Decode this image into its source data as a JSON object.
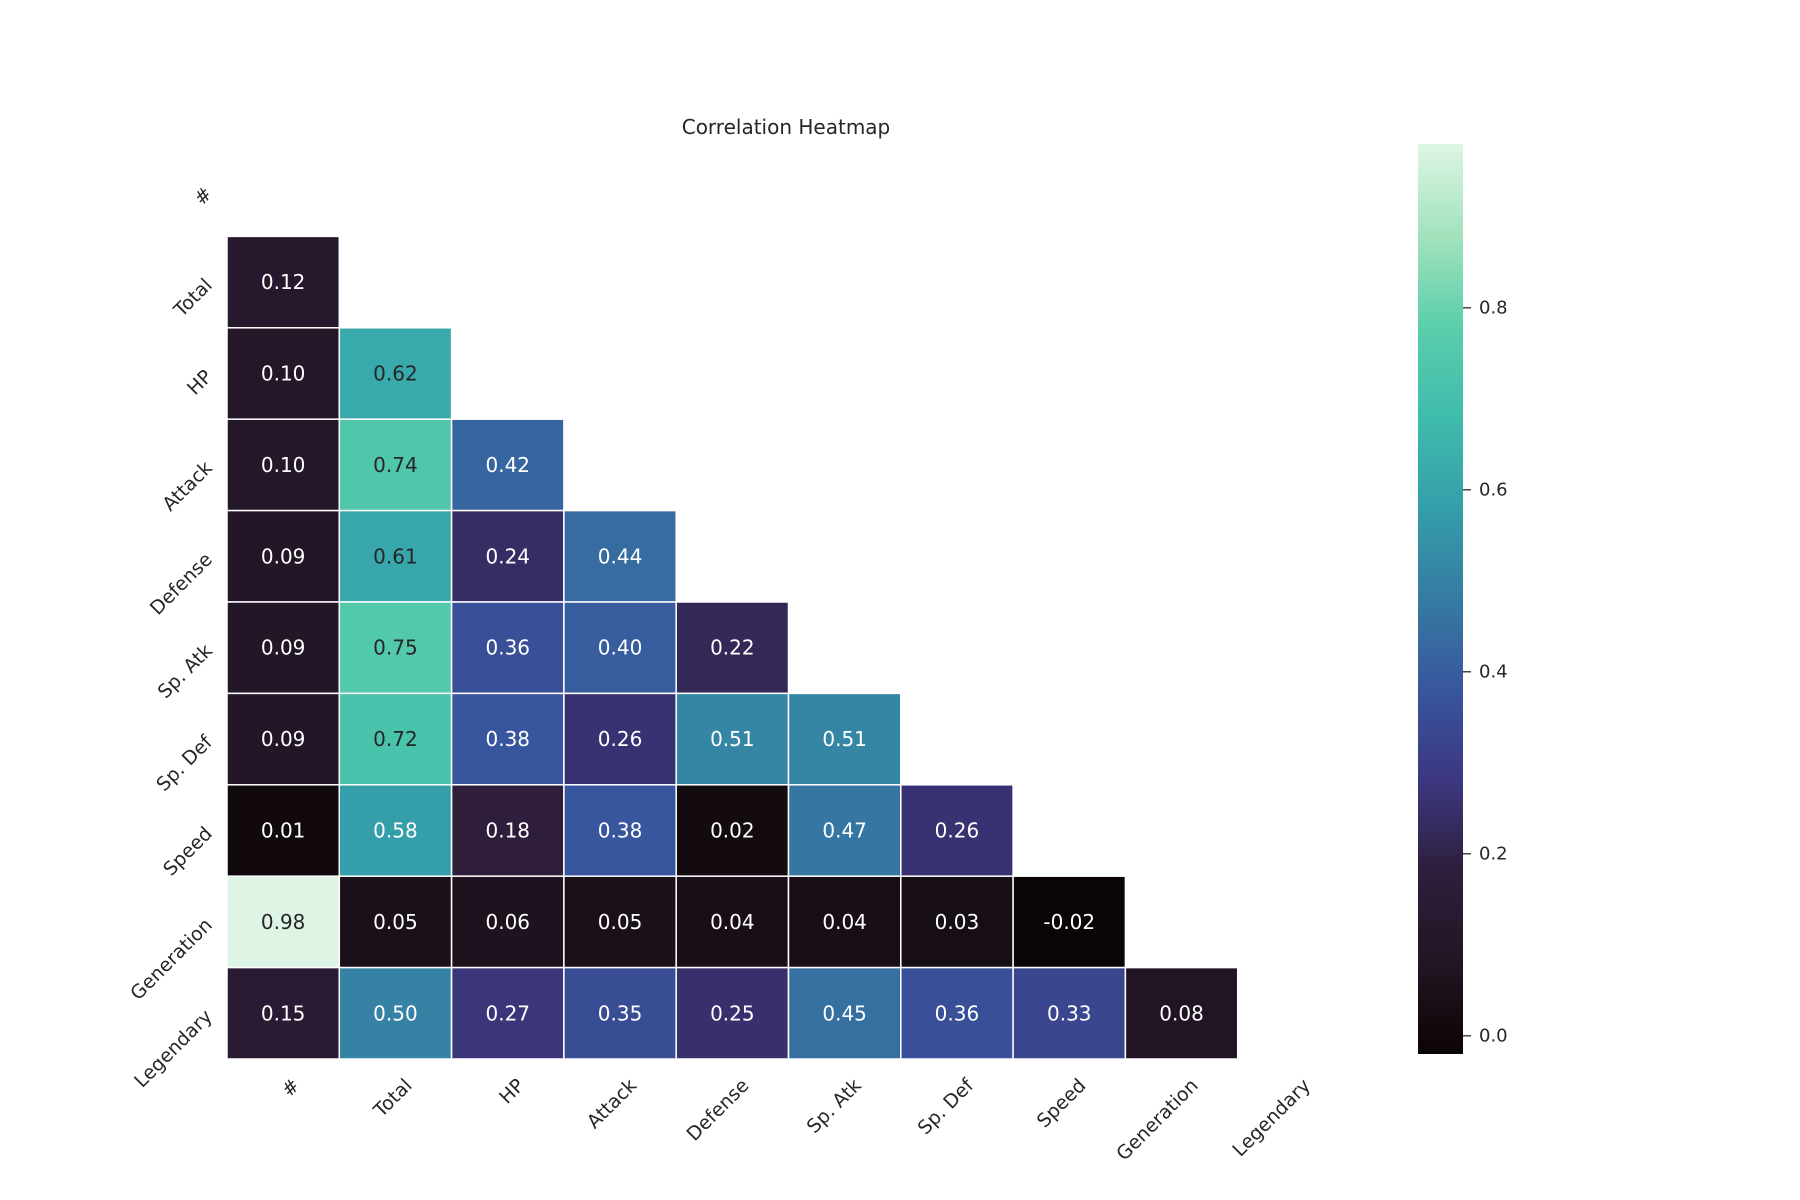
{
  "chart_data": {
    "type": "heatmap",
    "title": "Correlation Heatmap",
    "labels": [
      "#",
      "Total",
      "HP",
      "Attack",
      "Defense",
      "Sp. Atk",
      "Sp. Def",
      "Speed",
      "Generation",
      "Legendary"
    ],
    "mask": "upper-triangle-including-diagonal",
    "matrix": [
      [
        null,
        null,
        null,
        null,
        null,
        null,
        null,
        null,
        null,
        null
      ],
      [
        0.12,
        null,
        null,
        null,
        null,
        null,
        null,
        null,
        null,
        null
      ],
      [
        0.1,
        0.62,
        null,
        null,
        null,
        null,
        null,
        null,
        null,
        null
      ],
      [
        0.1,
        0.74,
        0.42,
        null,
        null,
        null,
        null,
        null,
        null,
        null
      ],
      [
        0.09,
        0.61,
        0.24,
        0.44,
        null,
        null,
        null,
        null,
        null,
        null
      ],
      [
        0.09,
        0.75,
        0.36,
        0.4,
        0.22,
        null,
        null,
        null,
        null,
        null
      ],
      [
        0.09,
        0.72,
        0.38,
        0.26,
        0.51,
        0.51,
        null,
        null,
        null,
        null
      ],
      [
        0.01,
        0.58,
        0.18,
        0.38,
        0.02,
        0.47,
        0.26,
        null,
        null,
        null
      ],
      [
        0.98,
        0.05,
        0.06,
        0.05,
        0.04,
        0.04,
        0.03,
        -0.02,
        null,
        null
      ],
      [
        0.15,
        0.5,
        0.27,
        0.35,
        0.25,
        0.45,
        0.36,
        0.33,
        0.08,
        null
      ]
    ],
    "colormap": "mako",
    "vmin": -0.02,
    "vmax": 0.98,
    "colorbar_ticks": [
      0.0,
      0.2,
      0.4,
      0.6,
      0.8
    ],
    "colorbar_tick_labels": [
      "0.0",
      "0.2",
      "0.4",
      "0.6",
      "0.8"
    ],
    "grid": false,
    "legend": "colorbar-right"
  }
}
